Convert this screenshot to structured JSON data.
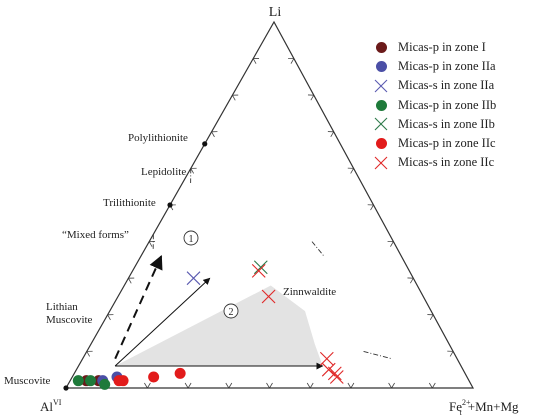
{
  "chart_data": {
    "type": "scatter",
    "subtype": "ternary",
    "vertex_labels": {
      "top": "Li",
      "left": "Al",
      "left_sup": "VI",
      "right": "Fe",
      "right_sub": "t",
      "right_sup": "2+",
      "right_rest": "+Mn+Mg"
    },
    "reference_points": [
      {
        "label": "Polylithionite",
        "li": 0.667,
        "fe": 0.0
      },
      {
        "label": "Trilithionite",
        "li": 0.5,
        "fe": 0.0
      },
      {
        "label": "Muscovite",
        "li": 0.0,
        "fe": 0.0
      }
    ],
    "field_labels": {
      "lepidolite": "Lepidolite",
      "mixed_forms": "“Mixed forms”",
      "lithian_muscovite_1": "Lithian",
      "lithian_muscovite_2": "Muscovite",
      "zinnwaldite": "Zinnwaldite"
    },
    "annotations": {
      "trend1": "1",
      "trend2": "2"
    },
    "series": [
      {
        "name": "Micas-p in zone I",
        "marker": "dot",
        "color": "#6b1a1a",
        "points": [
          {
            "li": 0.02,
            "fe": 0.04
          },
          {
            "li": 0.02,
            "fe": 0.07
          }
        ]
      },
      {
        "name": "Micas-p in zone IIa",
        "marker": "dot",
        "color": "#4b4fa6",
        "points": [
          {
            "li": 0.03,
            "fe": 0.11
          },
          {
            "li": 0.02,
            "fe": 0.08
          }
        ]
      },
      {
        "name": "Micas-s in zone IIa",
        "marker": "x",
        "color": "#5a5ab0",
        "points": [
          {
            "li": 0.3,
            "fe": 0.16
          }
        ]
      },
      {
        "name": "Micas-p in zone IIb",
        "marker": "dot",
        "color": "#1e7a3a",
        "points": [
          {
            "li": 0.02,
            "fe": 0.02
          },
          {
            "li": 0.02,
            "fe": 0.05
          },
          {
            "li": 0.01,
            "fe": 0.09
          }
        ]
      },
      {
        "name": "Micas-s in zone IIb",
        "marker": "x",
        "color": "#2e7a4a",
        "points": [
          {
            "li": 0.33,
            "fe": 0.31
          }
        ]
      },
      {
        "name": "Micas-p in zone IIc",
        "marker": "dot",
        "color": "#e21b1b",
        "points": [
          {
            "li": 0.02,
            "fe": 0.13
          },
          {
            "li": 0.03,
            "fe": 0.2
          },
          {
            "li": 0.04,
            "fe": 0.26
          },
          {
            "li": 0.02,
            "fe": 0.12
          }
        ]
      },
      {
        "name": "Micas-s in zone IIc",
        "marker": "x",
        "color": "#e02828",
        "points": [
          {
            "li": 0.32,
            "fe": 0.31
          },
          {
            "li": 0.25,
            "fe": 0.37
          },
          {
            "li": 0.08,
            "fe": 0.6
          },
          {
            "li": 0.05,
            "fe": 0.62
          },
          {
            "li": 0.04,
            "fe": 0.64
          },
          {
            "li": 0.03,
            "fe": 0.65
          }
        ]
      }
    ],
    "shaded_region": [
      {
        "li": 0.06,
        "fe": 0.09
      },
      {
        "li": 0.28,
        "fe": 0.36
      },
      {
        "li": 0.21,
        "fe": 0.48
      },
      {
        "li": 0.12,
        "fe": 0.55
      },
      {
        "li": 0.06,
        "fe": 0.6
      }
    ],
    "arrows": [
      {
        "style": "dashed",
        "from": {
          "li": 0.08,
          "fe": 0.08
        },
        "to": {
          "li": 0.36,
          "fe": 0.05
        }
      },
      {
        "style": "solid",
        "from": {
          "li": 0.06,
          "fe": 0.09
        },
        "to": {
          "li": 0.3,
          "fe": 0.2
        }
      },
      {
        "style": "solid",
        "from": {
          "li": 0.06,
          "fe": 0.09
        },
        "to": {
          "li": 0.06,
          "fe": 0.6
        }
      }
    ],
    "boundary_segments": [
      {
        "from": {
          "li": 0.6,
          "fe": 0.0
        },
        "to": {
          "li": 0.56,
          "fe": 0.02
        }
      },
      {
        "from": {
          "li": 0.42,
          "fe": 0.0
        },
        "to": {
          "li": 0.38,
          "fe": 0.02
        }
      },
      {
        "from": {
          "li": 0.4,
          "fe": 0.4
        },
        "to": {
          "li": 0.36,
          "fe": 0.45
        }
      },
      {
        "from": {
          "li": 0.1,
          "fe": 0.68
        },
        "to": {
          "li": 0.08,
          "fe": 0.76
        }
      }
    ]
  }
}
